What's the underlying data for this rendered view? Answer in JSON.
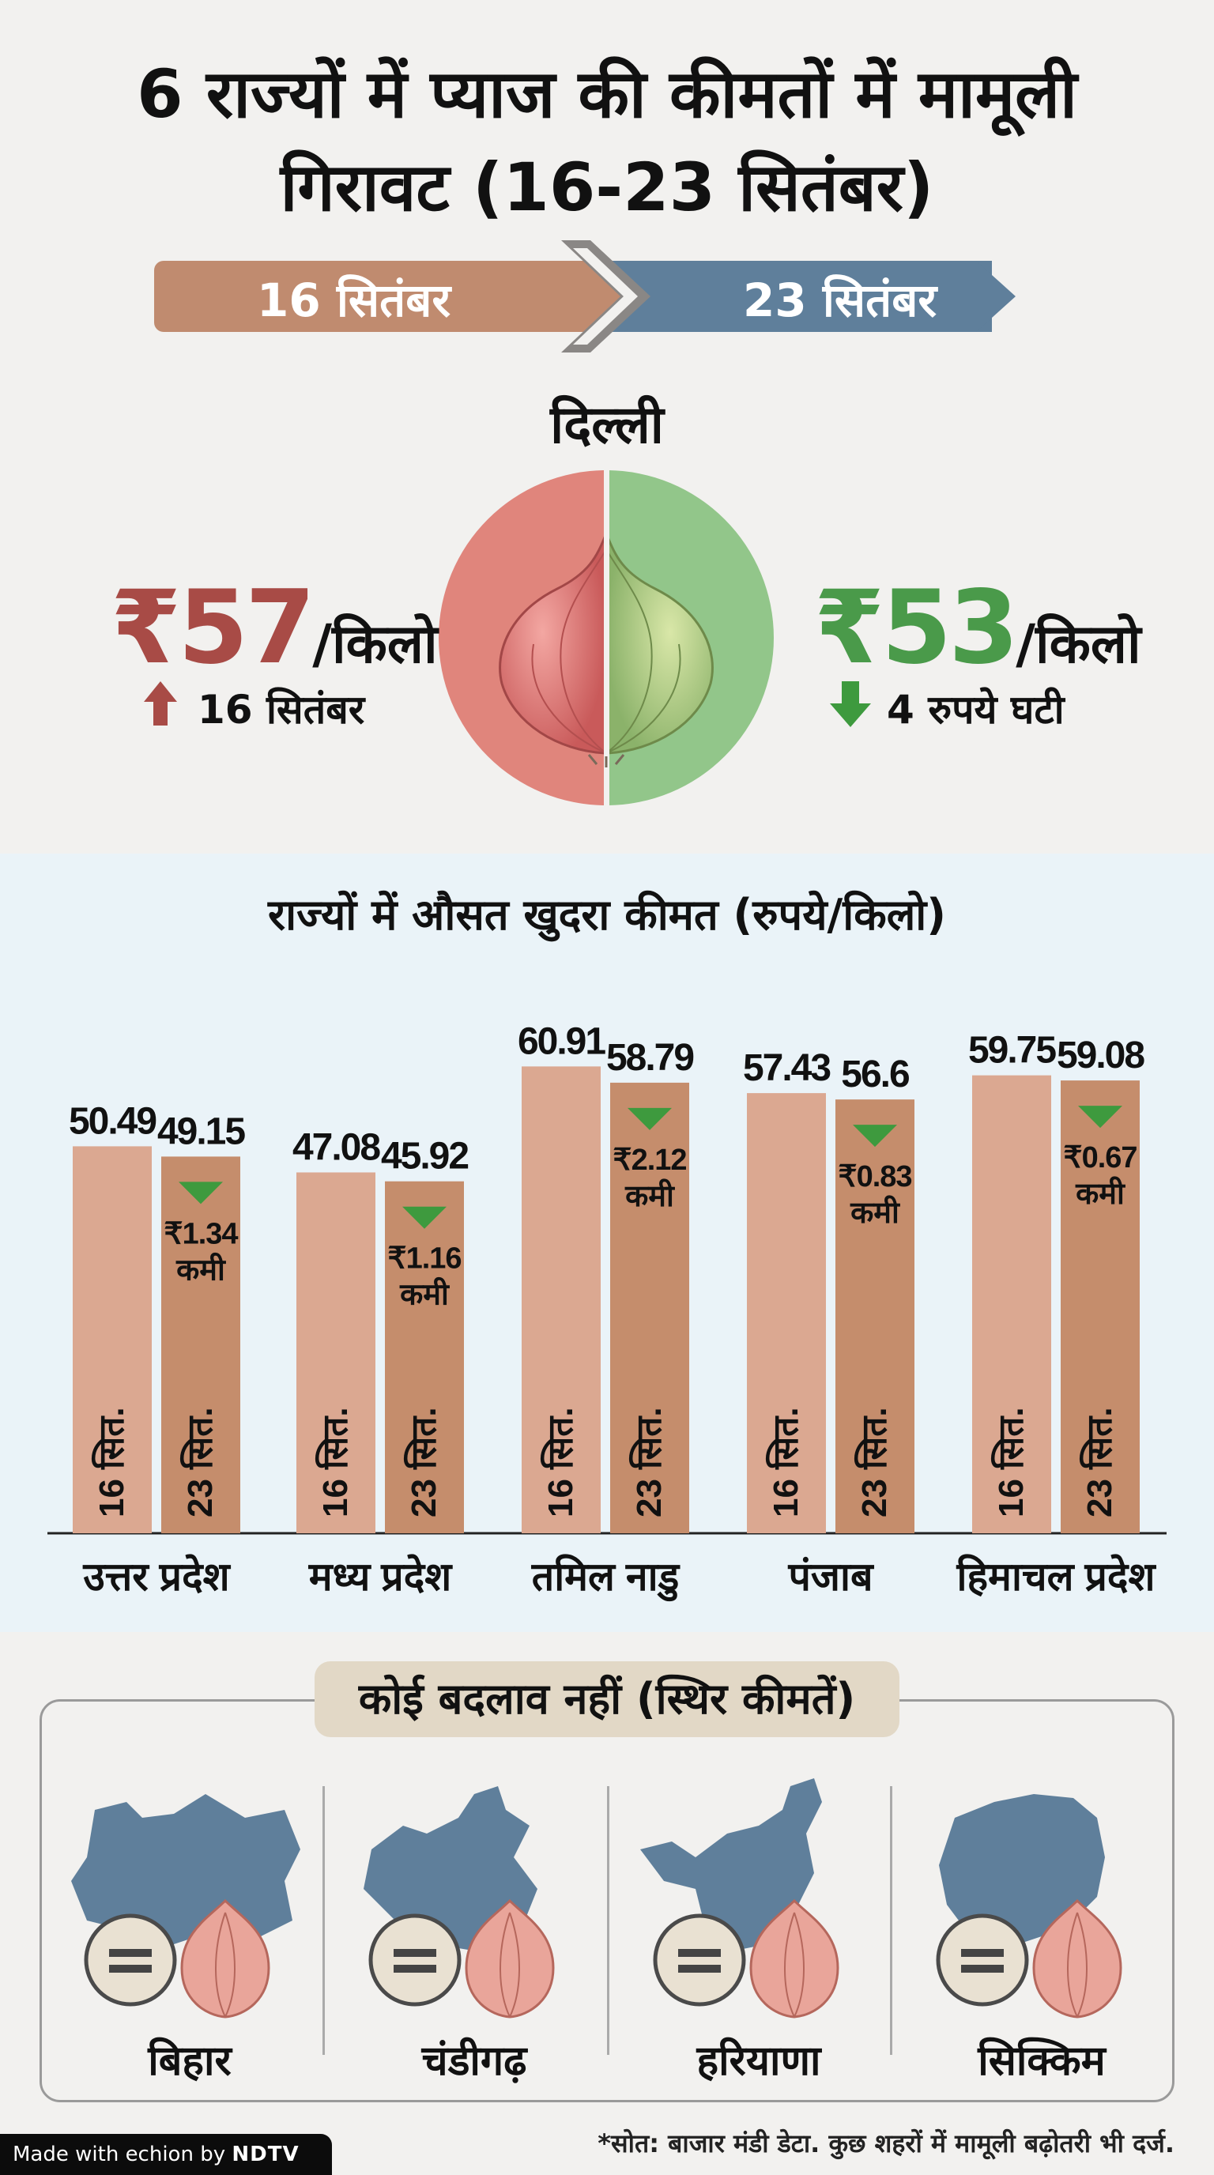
{
  "title": {
    "line1": "6 राज्यों में प्याज की कीमतों में मामूली",
    "line2": "गिरावट (16-23 सितंबर)"
  },
  "dates": {
    "from": "16 सितंबर",
    "to": "23 सितंबर"
  },
  "delhi": {
    "name": "दिल्ली",
    "before": {
      "currency": "₹",
      "amount": "57",
      "unit": "/किलो",
      "note": "16 सितंबर"
    },
    "after": {
      "currency": "₹",
      "amount": "53",
      "unit": "/किलो",
      "note": "4 रुपये घटी"
    }
  },
  "chart_data": {
    "type": "bar",
    "title": "राज्यों में औसत खुदरा कीमत (रुपये/किलो)",
    "categories": [
      "उत्तर प्रदेश",
      "मध्य प्रदेश",
      "तमिल नाडु",
      "पंजाब",
      "हिमाचल प्रदेश"
    ],
    "series": [
      {
        "name": "16 सित.",
        "values": [
          50.49,
          47.08,
          60.91,
          57.43,
          59.75
        ]
      },
      {
        "name": "23 सित.",
        "values": [
          49.15,
          45.92,
          58.79,
          56.6,
          59.08
        ]
      }
    ],
    "value_labels": {
      "16 सित.": [
        "50.49",
        "47.08",
        "60.91",
        "57.43",
        "59.75"
      ],
      "23 सित.": [
        "49.15",
        "45.92",
        "58.79",
        "56.6",
        "59.08"
      ]
    },
    "drops": [
      "₹1.34",
      "₹1.16",
      "₹2.12",
      "₹0.83",
      "₹0.67"
    ],
    "drop_word": "कमी",
    "ylim": [
      0,
      66
    ]
  },
  "stable": {
    "heading": "कोई बदलाव नहीं (स्थिर कीमतें)",
    "states": [
      "बिहार",
      "चंडीगढ़",
      "हरियाणा",
      "सिक्किम"
    ]
  },
  "source": "*सोत: बाजार मंडी डेटा. कुछ शहरों में मामूली बढ़ोतरी भी दर्ज.",
  "badge": {
    "made_with": "Made with",
    "tool": "echion",
    "by": "by",
    "brand": "NDTV"
  },
  "colors": {
    "before_arrow": "#c08b6f",
    "after_arrow": "#5f7f9b",
    "bar_before": "#dba891",
    "bar_after": "#c58d6c",
    "drop_triangle": "#3e9a3e",
    "price_red": "#a84b46",
    "price_green": "#4a9a4a",
    "state_map": "#5f7f9b"
  }
}
